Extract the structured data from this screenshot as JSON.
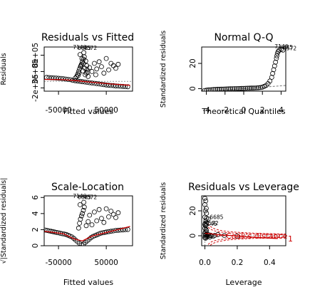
{
  "chart_data": [
    {
      "type": "scatter",
      "title": "Residuals vs Fitted",
      "xlabel": "Fitted values",
      "ylabel": "Residuals",
      "xlim": [
        -80000,
        105000
      ],
      "ylim": [
        -300000.0,
        1050000.0
      ],
      "xticks": [
        {
          "v": -50000,
          "label": "-50000"
        },
        {
          "v": 50000,
          "label": "50000"
        }
      ],
      "yticks": [
        {
          "v": -200000.0,
          "label": "-2e+05"
        },
        {
          "v": 300000.0,
          "label": "3e+05"
        },
        {
          "v": 800000.0,
          "label": "8e+05"
        }
      ],
      "hline": 0,
      "smooth_color": "#cc0000",
      "point_labels": [
        {
          "text": "7146",
          "x": -20000,
          "y": 990000.0
        },
        {
          "text": "6685",
          "x": -10000,
          "y": 960000.0
        },
        {
          "text": "4572",
          "x": 2000,
          "y": 960000.0
        }
      ],
      "points": [
        [
          -75000,
          120000
        ],
        [
          -70000,
          115000
        ],
        [
          -65000,
          110000
        ],
        [
          -60000,
          105000
        ],
        [
          -55000,
          100000
        ],
        [
          -50000,
          95000
        ],
        [
          -45000,
          90000
        ],
        [
          -40000,
          80000
        ],
        [
          -35000,
          70000
        ],
        [
          -30000,
          60000
        ],
        [
          -25000,
          50000
        ],
        [
          -20000,
          30000
        ],
        [
          -15000,
          20000
        ],
        [
          -10000,
          10000
        ],
        [
          -5000,
          0
        ],
        [
          0,
          -10000
        ],
        [
          5000,
          -20000
        ],
        [
          10000,
          -30000
        ],
        [
          15000,
          -40000
        ],
        [
          20000,
          -50000
        ],
        [
          25000,
          -60000
        ],
        [
          30000,
          -70000
        ],
        [
          35000,
          -80000
        ],
        [
          40000,
          -90000
        ],
        [
          45000,
          -100000
        ],
        [
          50000,
          -110000
        ],
        [
          55000,
          -120000
        ],
        [
          60000,
          -125000
        ],
        [
          65000,
          -130000
        ],
        [
          70000,
          -140000
        ],
        [
          75000,
          -145000
        ],
        [
          80000,
          -150000
        ],
        [
          85000,
          -155000
        ],
        [
          90000,
          -160000
        ],
        [
          95000,
          -165000
        ],
        [
          -12000,
          150000
        ],
        [
          -10000,
          220000
        ],
        [
          -8000,
          300000
        ],
        [
          -6000,
          380000
        ],
        [
          -4000,
          450000
        ],
        [
          -2000,
          520000
        ],
        [
          0,
          600000
        ],
        [
          2000,
          680000
        ],
        [
          4000,
          750000
        ],
        [
          -5000,
          820000
        ],
        [
          3000,
          880000
        ],
        [
          -7000,
          250000
        ],
        [
          1000,
          320000
        ],
        [
          5000,
          400000
        ],
        [
          -3000,
          480000
        ],
        [
          6000,
          200000
        ],
        [
          8000,
          260000
        ],
        [
          10000,
          350000
        ],
        [
          12000,
          150000
        ],
        [
          15000,
          420000
        ],
        [
          20000,
          300000
        ],
        [
          25000,
          550000
        ],
        [
          28000,
          200000
        ],
        [
          30000,
          380000
        ],
        [
          35000,
          600000
        ],
        [
          40000,
          450000
        ],
        [
          45000,
          250000
        ],
        [
          50000,
          700000
        ],
        [
          55000,
          350000
        ],
        [
          60000,
          550000
        ],
        [
          65000,
          480000
        ],
        [
          70000,
          400000
        ],
        [
          75000,
          520000
        ],
        [
          -15000,
          100000
        ],
        [
          -9000,
          180000
        ],
        [
          -1000,
          700000
        ],
        [
          2000,
          550000
        ],
        [
          7000,
          620000
        ],
        [
          9000,
          480000
        ],
        [
          11000,
          280000
        ]
      ],
      "smooth": [
        [
          -80000,
          60000
        ],
        [
          -40000,
          50000
        ],
        [
          -10000,
          20000
        ],
        [
          0,
          0
        ],
        [
          30000,
          -40000
        ],
        [
          60000,
          -80000
        ],
        [
          100000,
          -120000
        ]
      ]
    },
    {
      "type": "scatter",
      "title": "Normal Q-Q",
      "xlabel": "Theoretical Quantiles",
      "ylabel": "Standardized residuals",
      "xlim": [
        -4.5,
        4.5
      ],
      "ylim": [
        -2,
        33
      ],
      "xticks": [
        {
          "v": -4,
          "label": "-4"
        },
        {
          "v": -2,
          "label": "-2"
        },
        {
          "v": 0,
          "label": "0"
        },
        {
          "v": 2,
          "label": "2"
        },
        {
          "v": 4,
          "label": "4"
        }
      ],
      "yticks": [
        {
          "v": 0,
          "label": "0"
        },
        {
          "v": 20,
          "label": "20"
        }
      ],
      "refline": [
        [
          -4.5,
          -2.5
        ],
        [
          4.5,
          2.5
        ]
      ],
      "point_labels": [
        {
          "text": "7146",
          "x": 3.3,
          "y": 32
        },
        {
          "text": "6685",
          "x": 3.8,
          "y": 31.2
        },
        {
          "text": "4572",
          "x": 4.2,
          "y": 30.6
        }
      ],
      "points": [
        [
          -4.2,
          -1.5
        ],
        [
          -4.0,
          -1.2
        ],
        [
          -3.8,
          -1.0
        ],
        [
          -3.6,
          -0.9
        ],
        [
          -3.4,
          -0.8
        ],
        [
          -3.2,
          -0.7
        ],
        [
          -3.0,
          -0.6
        ],
        [
          -2.8,
          -0.5
        ],
        [
          -2.6,
          -0.45
        ],
        [
          -2.4,
          -0.4
        ],
        [
          -2.2,
          -0.35
        ],
        [
          -2.0,
          -0.3
        ],
        [
          -1.8,
          -0.25
        ],
        [
          -1.6,
          -0.2
        ],
        [
          -1.4,
          -0.15
        ],
        [
          -1.2,
          -0.1
        ],
        [
          -1.0,
          -0.05
        ],
        [
          -0.8,
          0
        ],
        [
          -0.6,
          0.05
        ],
        [
          -0.4,
          0.1
        ],
        [
          -0.2,
          0.15
        ],
        [
          0.0,
          0.2
        ],
        [
          0.2,
          0.25
        ],
        [
          0.4,
          0.3
        ],
        [
          0.6,
          0.35
        ],
        [
          0.8,
          0.4
        ],
        [
          1.0,
          0.45
        ],
        [
          1.2,
          0.5
        ],
        [
          1.4,
          0.6
        ],
        [
          1.6,
          0.7
        ],
        [
          1.8,
          0.9
        ],
        [
          2.0,
          1.2
        ],
        [
          2.2,
          1.8
        ],
        [
          2.4,
          2.6
        ],
        [
          2.6,
          4.0
        ],
        [
          2.8,
          6.0
        ],
        [
          3.0,
          9.0
        ],
        [
          3.1,
          12.0
        ],
        [
          3.2,
          15.0
        ],
        [
          3.3,
          18.0
        ],
        [
          3.4,
          21.0
        ],
        [
          3.5,
          24.0
        ],
        [
          3.55,
          26.0
        ],
        [
          3.6,
          28.0
        ],
        [
          3.7,
          29.5
        ],
        [
          3.8,
          30.5
        ],
        [
          4.0,
          31.0
        ],
        [
          4.2,
          30.6
        ]
      ]
    },
    {
      "type": "scatter",
      "title": "Scale-Location",
      "xlabel": "Fitted values",
      "ylabel": "√|Standardized residuals|",
      "xlim": [
        -80000,
        105000
      ],
      "ylim": [
        0,
        6.2
      ],
      "xticks": [
        {
          "v": -50000,
          "label": "-50000"
        },
        {
          "v": 50000,
          "label": "50000"
        }
      ],
      "yticks": [
        {
          "v": 0,
          "label": "0"
        },
        {
          "v": 2,
          "label": "2"
        },
        {
          "v": 4,
          "label": "4"
        },
        {
          "v": 6,
          "label": "6"
        }
      ],
      "smooth_color": "#cc0000",
      "point_labels": [
        {
          "text": "7146",
          "x": -20000,
          "y": 5.95
        },
        {
          "text": "6685",
          "x": -10000,
          "y": 5.8
        },
        {
          "text": "4572",
          "x": 2000,
          "y": 5.8
        }
      ],
      "points": [
        [
          -78000,
          1.95
        ],
        [
          -74000,
          1.9
        ],
        [
          -70000,
          1.85
        ],
        [
          -66000,
          1.8
        ],
        [
          -62000,
          1.75
        ],
        [
          -58000,
          1.7
        ],
        [
          -54000,
          1.65
        ],
        [
          -50000,
          1.6
        ],
        [
          -46000,
          1.55
        ],
        [
          -42000,
          1.5
        ],
        [
          -38000,
          1.45
        ],
        [
          -34000,
          1.4
        ],
        [
          -30000,
          1.3
        ],
        [
          -26000,
          1.2
        ],
        [
          -22000,
          1.1
        ],
        [
          -18000,
          0.9
        ],
        [
          -14000,
          0.7
        ],
        [
          -10000,
          0.5
        ],
        [
          -6000,
          0.3
        ],
        [
          -2000,
          0.1
        ],
        [
          2000,
          0.2
        ],
        [
          6000,
          0.4
        ],
        [
          10000,
          0.6
        ],
        [
          14000,
          0.8
        ],
        [
          18000,
          1.0
        ],
        [
          22000,
          1.15
        ],
        [
          26000,
          1.25
        ],
        [
          30000,
          1.35
        ],
        [
          34000,
          1.45
        ],
        [
          38000,
          1.55
        ],
        [
          42000,
          1.6
        ],
        [
          46000,
          1.65
        ],
        [
          50000,
          1.7
        ],
        [
          55000,
          1.75
        ],
        [
          60000,
          1.8
        ],
        [
          65000,
          1.85
        ],
        [
          70000,
          1.9
        ],
        [
          75000,
          1.92
        ],
        [
          80000,
          1.95
        ],
        [
          85000,
          1.97
        ],
        [
          90000,
          2.0
        ],
        [
          95000,
          2.02
        ],
        [
          -8000,
          2.2
        ],
        [
          -6000,
          2.8
        ],
        [
          -4000,
          3.3
        ],
        [
          -2000,
          3.7
        ],
        [
          0,
          4.0
        ],
        [
          2000,
          4.4
        ],
        [
          4000,
          4.8
        ],
        [
          -5000,
          5.1
        ],
        [
          3000,
          5.4
        ],
        [
          8000,
          2.5
        ],
        [
          12000,
          3.0
        ],
        [
          15000,
          3.8
        ],
        [
          20000,
          2.6
        ],
        [
          25000,
          4.2
        ],
        [
          30000,
          3.1
        ],
        [
          35000,
          4.5
        ],
        [
          40000,
          3.4
        ],
        [
          45000,
          2.9
        ],
        [
          50000,
          4.6
        ],
        [
          55000,
          3.6
        ],
        [
          60000,
          4.3
        ],
        [
          65000,
          3.9
        ],
        [
          70000,
          3.5
        ],
        [
          75000,
          4.1
        ]
      ],
      "smooth": [
        [
          -80000,
          1.8
        ],
        [
          -40000,
          1.5
        ],
        [
          -15000,
          0.8
        ],
        [
          0,
          0.6
        ],
        [
          20000,
          1.2
        ],
        [
          60000,
          1.8
        ],
        [
          100000,
          2.4
        ]
      ]
    },
    {
      "type": "scatter",
      "title": "Residuals vs Leverage",
      "xlabel": "Leverage",
      "ylabel": "Standardized residuals",
      "xlim": [
        -0.02,
        0.5
      ],
      "ylim": [
        -8,
        32
      ],
      "xticks": [
        {
          "v": 0.0,
          "label": "0.0"
        },
        {
          "v": 0.2,
          "label": "0.2"
        },
        {
          "v": 0.4,
          "label": "0.4"
        }
      ],
      "yticks": [
        {
          "v": 0,
          "label": "0"
        },
        {
          "v": 20,
          "label": "20"
        }
      ],
      "hline": 0,
      "vline": 0,
      "smooth_color": "#cc0000",
      "cook_label": "Cook's distance",
      "cook_contour_label": "1",
      "point_labels": [
        {
          "text": "6685",
          "x": 0.03,
          "y": 13.5
        },
        {
          "text": "4572",
          "x": 0.0,
          "y": 8.5
        },
        {
          "text": "7146",
          "x": -0.01,
          "y": 8.0
        }
      ],
      "points": [
        [
          0.0,
          30
        ],
        [
          0.005,
          28
        ],
        [
          0.0,
          25
        ],
        [
          0.008,
          22
        ],
        [
          0.003,
          20
        ],
        [
          0.01,
          18
        ],
        [
          0.0,
          15
        ],
        [
          0.006,
          12
        ],
        [
          0.002,
          10
        ],
        [
          0.004,
          8
        ],
        [
          0.0,
          6
        ],
        [
          0.007,
          5
        ],
        [
          0.01,
          4
        ],
        [
          0.003,
          3
        ],
        [
          0.0,
          2
        ],
        [
          0.005,
          1
        ],
        [
          0.002,
          0
        ],
        [
          0.008,
          -1
        ],
        [
          0.004,
          -2
        ],
        [
          0.0,
          -1.5
        ],
        [
          0.012,
          0.5
        ],
        [
          0.015,
          -0.5
        ],
        [
          0.02,
          1
        ],
        [
          0.025,
          0
        ],
        [
          0.03,
          -1
        ],
        [
          0.035,
          0.5
        ],
        [
          0.04,
          0
        ],
        [
          0.05,
          -0.5
        ],
        [
          0.06,
          0.3
        ],
        [
          0.08,
          1
        ],
        [
          0.12,
          0.2
        ],
        [
          0.2,
          -0.3
        ],
        [
          0.01,
          14
        ],
        [
          0.02,
          13.5
        ],
        [
          0.0,
          9
        ],
        [
          0.005,
          8.5
        ]
      ],
      "smooth": [
        [
          0.0,
          2.0
        ],
        [
          0.1,
          0.8
        ],
        [
          0.2,
          -0.2
        ],
        [
          0.3,
          -1.2
        ],
        [
          0.45,
          -2.2
        ]
      ]
    }
  ]
}
